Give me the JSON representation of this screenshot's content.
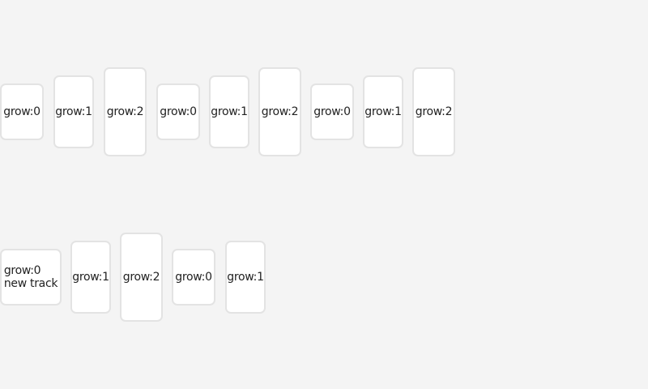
{
  "tracks": [
    {
      "items": [
        {
          "label": "grow:0"
        },
        {
          "label": "grow:1"
        },
        {
          "label": "grow:2"
        },
        {
          "label": "grow:0"
        },
        {
          "label": "grow:1"
        },
        {
          "label": "grow:2"
        },
        {
          "label": "grow:0"
        },
        {
          "label": "grow:1"
        },
        {
          "label": "grow:2"
        }
      ]
    },
    {
      "items": [
        {
          "label": "grow:0",
          "sublabel": "new track"
        },
        {
          "label": "grow:1"
        },
        {
          "label": "grow:2"
        },
        {
          "label": "grow:0"
        },
        {
          "label": "grow:1"
        }
      ]
    }
  ]
}
